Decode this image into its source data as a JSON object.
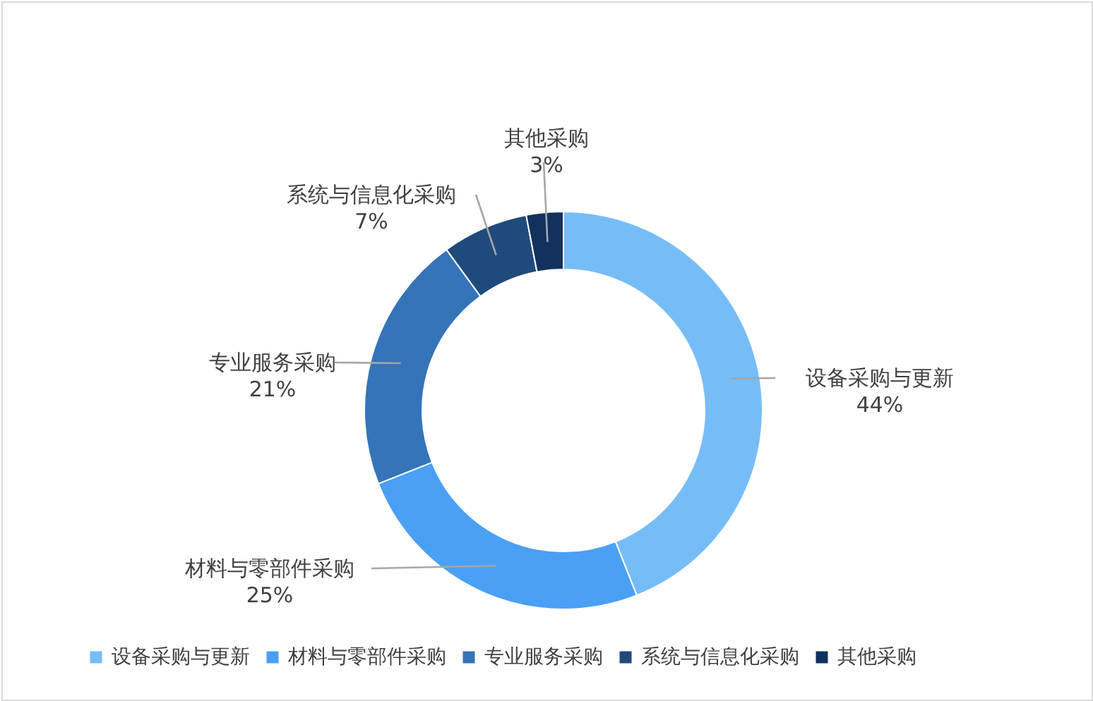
{
  "chart_data": {
    "type": "donut",
    "categories": [
      "设备采购与更新",
      "材料与零部件采购",
      "专业服务采购",
      "系统与信息化采购",
      "其他采购"
    ],
    "values": [
      44,
      25,
      21,
      7,
      3
    ],
    "colors": [
      "#76bdf8",
      "#4aa0f5",
      "#3574b9",
      "#1f4a7c",
      "#12315e"
    ],
    "value_labels": [
      "44%",
      "25%",
      "21%",
      "7%",
      "3%"
    ],
    "legend": "bottom"
  }
}
